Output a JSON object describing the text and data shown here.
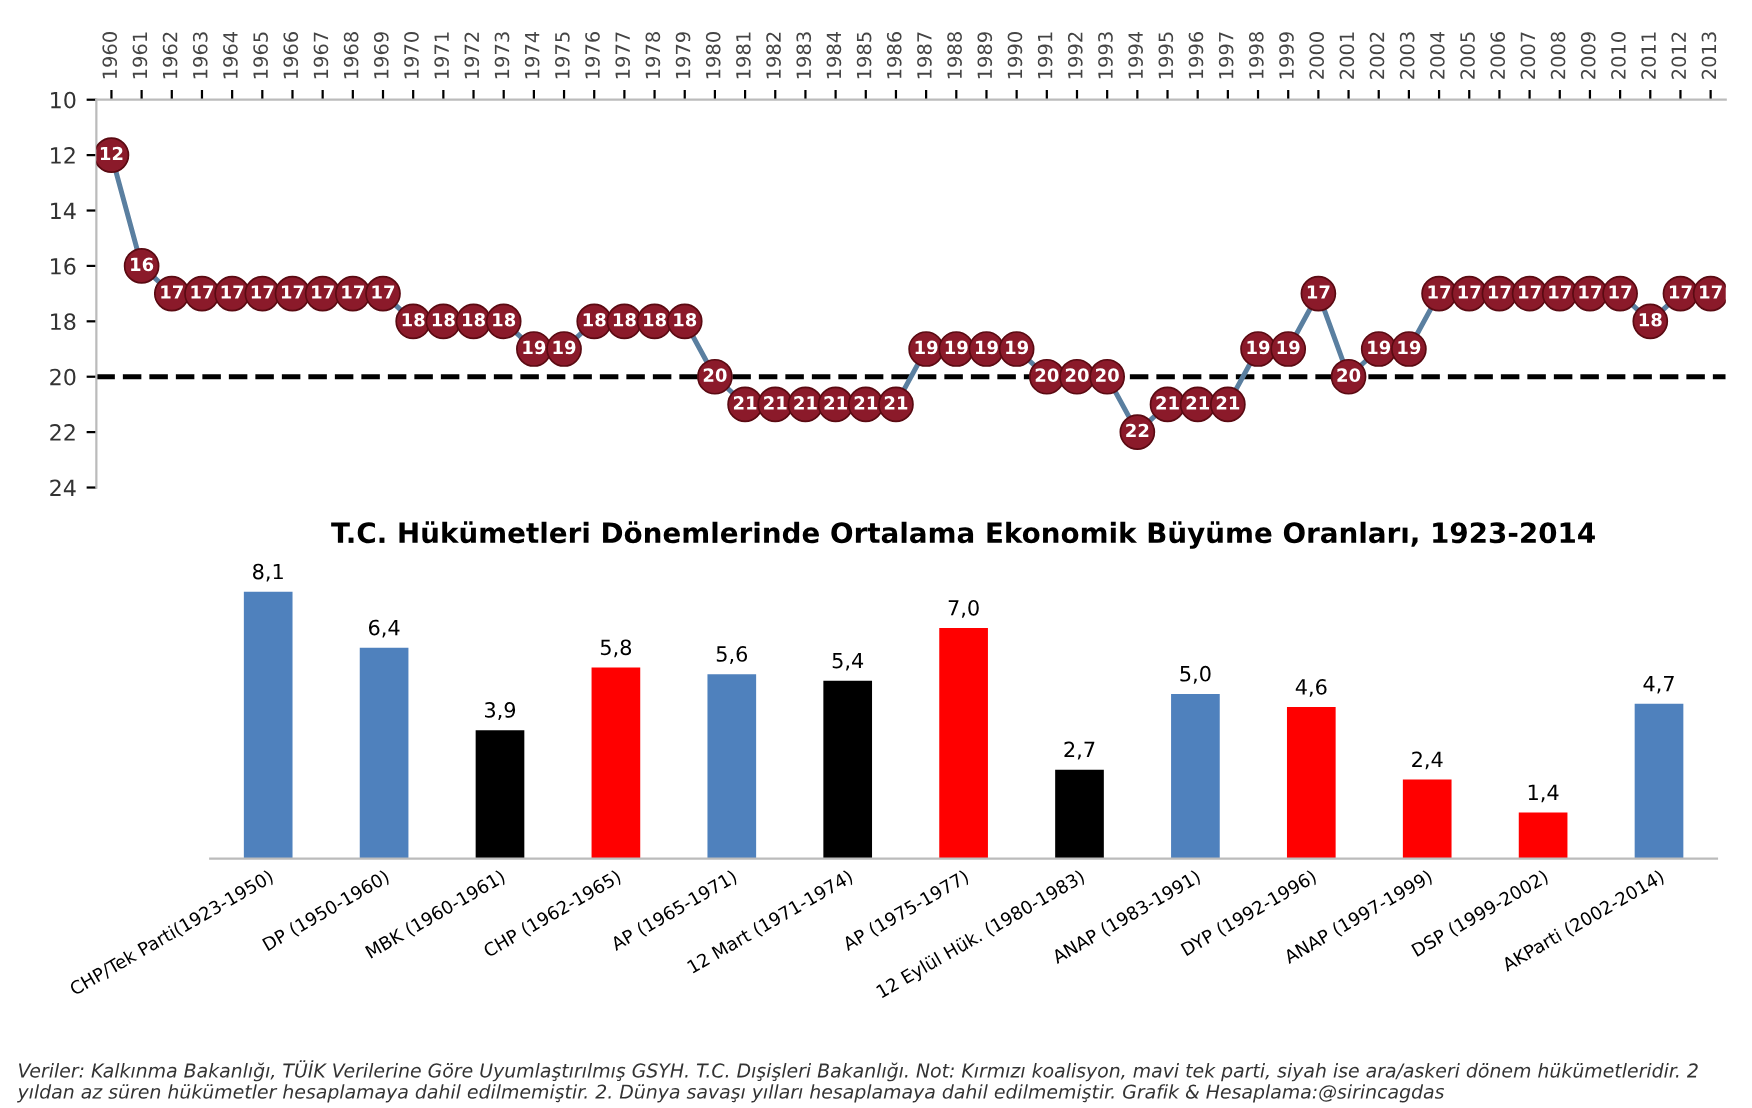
{
  "chart_data": [
    {
      "type": "line",
      "categories": [
        "1960",
        "1961",
        "1962",
        "1963",
        "1964",
        "1965",
        "1966",
        "1967",
        "1968",
        "1969",
        "1970",
        "1971",
        "1972",
        "1973",
        "1974",
        "1975",
        "1976",
        "1977",
        "1978",
        "1979",
        "1980",
        "1981",
        "1982",
        "1983",
        "1984",
        "1985",
        "1986",
        "1987",
        "1988",
        "1989",
        "1990",
        "1991",
        "1992",
        "1993",
        "1994",
        "1995",
        "1996",
        "1997",
        "1998",
        "1999",
        "2000",
        "2001",
        "2002",
        "2003",
        "2004",
        "2005",
        "2006",
        "2007",
        "2008",
        "2009",
        "2010",
        "2011",
        "2012",
        "2013"
      ],
      "series": [
        {
          "color": "#5a7fa0",
          "colors": [
            "#8b1a2a",
            "#8b1a2a",
            "#8b1a2a",
            "#8b1a2a",
            "#8b1a2a",
            "#8b1a2a",
            "#8b1a2a",
            "#8b1a2a",
            "#8b1a2a",
            "#8b1a2a",
            "#8b1a2a",
            "#8b1a2a",
            "#8b1a2a",
            "#8b1a2a",
            "#8b1a2a",
            "#8b1a2a",
            "#8b1a2a",
            "#8b1a2a",
            "#8b1a2a",
            "#8b1a2a",
            "#8b1a2a",
            "#8b1a2a",
            "#8b1a2a",
            "#8b1a2a",
            "#8b1a2a",
            "#8b1a2a",
            "#8b1a2a",
            "#8b1a2a",
            "#8b1a2a",
            "#8b1a2a",
            "#8b1a2a",
            "#8b1a2a",
            "#8b1a2a",
            "#8b1a2a",
            "#8b1a2a",
            "#8b1a2a",
            "#8b1a2a",
            "#8b1a2a",
            "#8b1a2a",
            "#8b1a2a",
            "#8b1a2a",
            "#8b1a2a",
            "#8b1a2a",
            "#8b1a2a",
            "#8b1a2a",
            "#8b1a2a",
            "#8b1a2a",
            "#8b1a2a",
            "#8b1a2a",
            "#8b1a2a",
            "#8b1a2a",
            "#8b1a2a",
            "#8b1a2a",
            "#8b1a2a"
          ],
          "values": [
            12,
            16,
            17,
            17,
            17,
            17,
            17,
            17,
            17,
            17,
            18,
            18,
            18,
            18,
            19,
            19,
            18,
            18,
            18,
            18,
            20,
            21,
            21,
            21,
            21,
            21,
            21,
            19,
            19,
            19,
            19,
            20,
            20,
            20,
            22,
            21,
            21,
            21,
            19,
            19,
            17,
            20,
            19,
            19,
            17,
            17,
            17,
            17,
            17,
            17,
            17,
            18,
            17,
            17
          ]
        }
      ],
      "ylim": [
        24,
        10
      ],
      "yticks": [
        10,
        12,
        14,
        16,
        18,
        20,
        22,
        24
      ],
      "ref_lines": [
        {
          "axis": "y",
          "value": 20,
          "color": "#000000",
          "line_style": "dashed"
        }
      ],
      "marker": "circle",
      "line_style": "solid",
      "data_labels": true,
      "grid": false,
      "legend": false
    },
    {
      "type": "bar",
      "title": "T.C. Hükümetleri Dönemlerinde Ortalama Ekonomik Büyüme Oranları, 1923-2014",
      "categories": [
        "CHP/Tek Parti(1923-1950)",
        "DP (1950-1960)",
        "MBK (1960-1961)",
        "CHP (1962-1965)",
        "AP (1965-1971)",
        "12 Mart (1971-1974)",
        "AP (1975-1977)",
        "12 Eylül Hük. (1980-1983)",
        "ANAP (1983-1991)",
        "DYP (1992-1996)",
        "ANAP (1997-1999)",
        "DSP (1999-2002)",
        "AKParti (2002-2014)"
      ],
      "values": [
        8.1,
        6.4,
        3.9,
        5.8,
        5.6,
        5.4,
        7.0,
        2.7,
        5.0,
        4.6,
        2.4,
        1.4,
        4.7
      ],
      "value_labels": [
        "8,1",
        "6,4",
        "3,9",
        "5,8",
        "5,6",
        "5,4",
        "7,0",
        "2,7",
        "5,0",
        "4,6",
        "2,4",
        "1,4",
        "4,7"
      ],
      "colors": [
        "#4f81bd",
        "#4f81bd",
        "#000000",
        "#ff0000",
        "#4f81bd",
        "#000000",
        "#ff0000",
        "#000000",
        "#4f81bd",
        "#ff0000",
        "#ff0000",
        "#ff0000",
        "#4f81bd"
      ],
      "grid": false,
      "legend": false,
      "annotations": [
        "Veriler: Kalkınma Bakanlığı, TÜİK Verilerine Göre Uyumlaştırılmış GSYH. T.C. Dışişleri Bakanlığı. Not: Kırmızı koalisyon, mavi tek parti, siyah ise ara/askeri dönem hükümetleridir. 2 yıldan az süren hükümetler hesaplamaya dahil edilmemiştir. 2. Dünya savaşı yılları hesaplamaya dahil edilmemiştir. Grafik & Hesaplama:@sirincagdas"
      ]
    }
  ]
}
